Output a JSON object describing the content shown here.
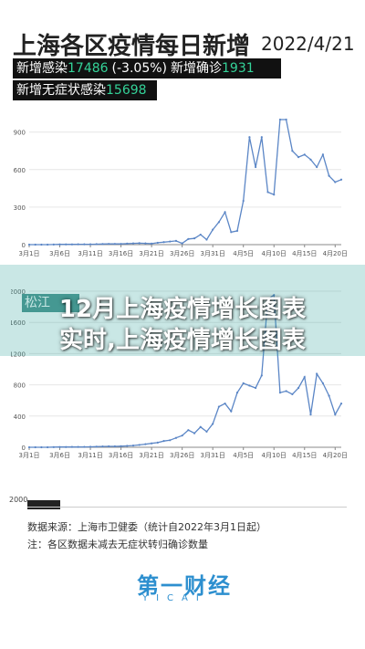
{
  "header": {
    "title": "上海各区疫情每日新增",
    "date": "2022/4/21"
  },
  "stats": {
    "new_infections_label": "新增感染",
    "new_infections_value": "17486",
    "new_infections_change": "(-3.05%)",
    "new_confirmed_label": "新增确诊",
    "new_confirmed_value": "1931",
    "new_asymptomatic_label": "新增无症状感染",
    "new_asymptomatic_value": "15698"
  },
  "overlay": {
    "line1": "12月上海疫情增长图表",
    "line2": "实时,上海疫情增长图表"
  },
  "partial_label": "松江",
  "chart_data": [
    {
      "type": "line",
      "x_ticks": [
        "3月1日",
        "3月6日",
        "3月11日",
        "3月16日",
        "3月21日",
        "3月26日",
        "3月31日",
        "4月5日",
        "4月10日",
        "4月15日",
        "4月20日"
      ],
      "y_ticks": [
        0,
        300,
        600,
        900
      ],
      "ylim": [
        0,
        1000
      ],
      "grid": true,
      "color": "#5b86c6",
      "x": [
        "3月1日",
        "3月2日",
        "3月3日",
        "3月4日",
        "3月5日",
        "3月6日",
        "3月7日",
        "3月8日",
        "3月9日",
        "3月10日",
        "3月11日",
        "3月12日",
        "3月13日",
        "3月14日",
        "3月15日",
        "3月16日",
        "3月17日",
        "3月18日",
        "3月19日",
        "3月20日",
        "3月21日",
        "3月22日",
        "3月23日",
        "3月24日",
        "3月25日",
        "3月26日",
        "3月27日",
        "3月28日",
        "3月29日",
        "3月30日",
        "3月31日",
        "4月1日",
        "4月2日",
        "4月3日",
        "4月4日",
        "4月5日",
        "4月6日",
        "4月7日",
        "4月8日",
        "4月9日",
        "4月10日",
        "4月11日",
        "4月12日",
        "4月13日",
        "4月14日",
        "4月15日",
        "4月16日",
        "4月17日",
        "4月18日",
        "4月19日",
        "4月20日",
        "4月21日"
      ],
      "values": [
        0,
        0,
        0,
        0,
        1,
        2,
        2,
        2,
        3,
        3,
        3,
        4,
        5,
        6,
        6,
        6,
        8,
        10,
        12,
        10,
        8,
        15,
        20,
        25,
        30,
        10,
        45,
        50,
        80,
        40,
        120,
        180,
        260,
        100,
        110,
        350,
        860,
        620,
        860,
        420,
        400,
        1000,
        1000,
        750,
        700,
        720,
        680,
        620,
        720,
        550,
        500,
        520
      ]
    },
    {
      "type": "line",
      "x_ticks": [
        "3月1日",
        "3月6日",
        "3月11日",
        "3月16日",
        "3月21日",
        "3月26日",
        "3月31日",
        "4月5日",
        "4月10日",
        "4月15日",
        "4月20日"
      ],
      "y_ticks": [
        0,
        400,
        800,
        1200,
        1600,
        2000
      ],
      "ylim": [
        0,
        2000
      ],
      "grid": true,
      "color": "#5b86c6",
      "x": [
        "3月1日",
        "3月2日",
        "3月3日",
        "3月4日",
        "3月5日",
        "3月6日",
        "3月7日",
        "3月8日",
        "3月9日",
        "3月10日",
        "3月11日",
        "3月12日",
        "3月13日",
        "3月14日",
        "3月15日",
        "3月16日",
        "3月17日",
        "3月18日",
        "3月19日",
        "3月20日",
        "3月21日",
        "3月22日",
        "3月23日",
        "3月24日",
        "3月25日",
        "3月26日",
        "3月27日",
        "3月28日",
        "3月29日",
        "3month30",
        "3月31日",
        "4月1日",
        "4月2日",
        "4月3日",
        "4月4日",
        "4月5日",
        "4月6日",
        "4月7日",
        "4月8日",
        "4月9日",
        "4月10日",
        "4月11日",
        "4月12日",
        "4月13日",
        "4月14日",
        "4月15日",
        "4月16日",
        "4月17日",
        "4月18日",
        "4月19日",
        "4月20日",
        "4月21日"
      ],
      "values": [
        0,
        0,
        0,
        0,
        2,
        3,
        3,
        4,
        4,
        5,
        6,
        8,
        10,
        12,
        12,
        14,
        18,
        22,
        30,
        40,
        50,
        60,
        80,
        90,
        120,
        150,
        220,
        180,
        260,
        200,
        300,
        520,
        560,
        460,
        700,
        820,
        790,
        760,
        920,
        1900,
        1950,
        700,
        720,
        680,
        760,
        900,
        420,
        940,
        820,
        660,
        420,
        560
      ]
    }
  ],
  "footer": {
    "y_label": "2000",
    "source": "数据来源：上海市卫健委（统计自2022年3月1日起）",
    "note": "注：各区数据未减去无症状转归确诊数量",
    "logo": "第一财经",
    "logo_sub": "YICAI"
  }
}
